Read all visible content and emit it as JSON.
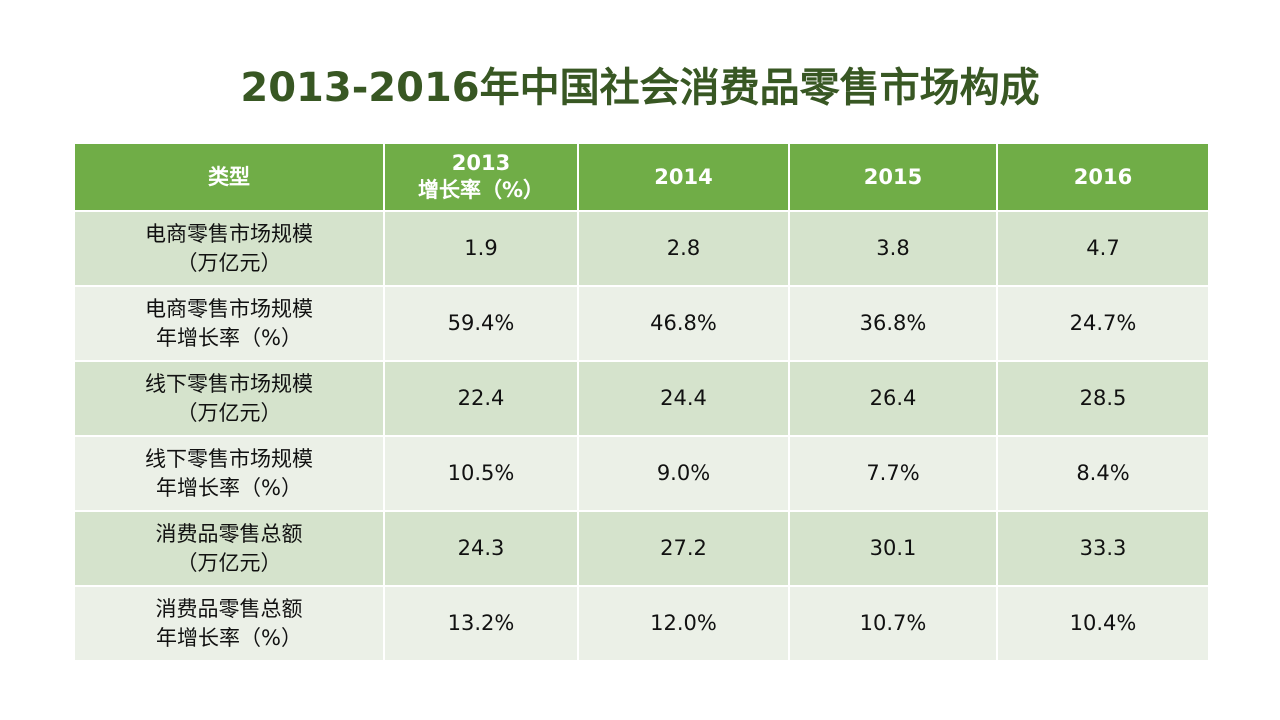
{
  "title": "2013-2016年中国社会消费品零售市场构成",
  "table": {
    "headers": [
      {
        "lines": [
          "类型"
        ]
      },
      {
        "lines": [
          "2013",
          "增长率（%）"
        ]
      },
      {
        "lines": [
          "2014"
        ]
      },
      {
        "lines": [
          "2015"
        ]
      },
      {
        "lines": [
          "2016"
        ]
      }
    ],
    "rows": [
      {
        "label": [
          "电商零售市场规模",
          "（万亿元）"
        ],
        "values": [
          "1.9",
          "2.8",
          "3.8",
          "4.7"
        ]
      },
      {
        "label": [
          "电商零售市场规模",
          "年增长率（%）"
        ],
        "values": [
          "59.4%",
          "46.8%",
          "36.8%",
          "24.7%"
        ]
      },
      {
        "label": [
          "线下零售市场规模",
          "（万亿元）"
        ],
        "values": [
          "22.4",
          "24.4",
          "26.4",
          "28.5"
        ]
      },
      {
        "label": [
          "线下零售市场规模",
          "年增长率（%）"
        ],
        "values": [
          "10.5%",
          "9.0%",
          "7.7%",
          "8.4%"
        ]
      },
      {
        "label": [
          "消费品零售总额",
          "（万亿元）"
        ],
        "values": [
          "24.3",
          "27.2",
          "30.1",
          "33.3"
        ]
      },
      {
        "label": [
          "消费品零售总额",
          "年增长率（%）"
        ],
        "values": [
          "13.2%",
          "12.0%",
          "10.7%",
          "10.4%"
        ]
      }
    ]
  },
  "colors": {
    "title": "#385723",
    "header_bg": "#70ad47",
    "row_odd_bg": "#d5e3cc",
    "row_even_bg": "#ebf0e7"
  }
}
